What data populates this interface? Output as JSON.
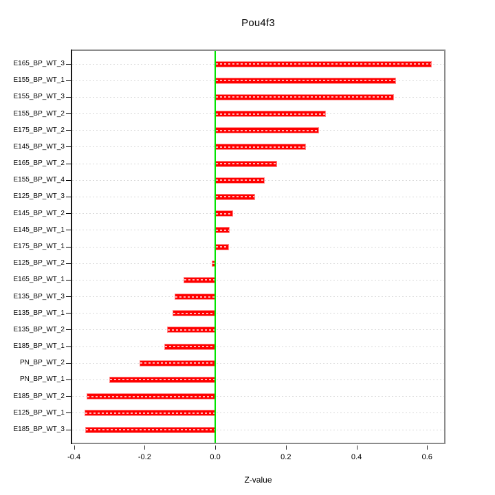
{
  "chart": {
    "title": "Pou4f3",
    "xlabel": "Z-value"
  },
  "chart_data": {
    "type": "bar",
    "orientation": "horizontal",
    "title": "Pou4f3",
    "xlabel": "Z-value",
    "ylabel": "",
    "legend": "none",
    "grid": "dotted horizontal line per category",
    "xlim": [
      -0.409,
      0.652
    ],
    "x_ticks": [
      -0.4,
      -0.2,
      0.0,
      0.2,
      0.4,
      0.6
    ],
    "x_tick_labels": [
      "-0.4",
      "-0.2",
      "0.0",
      "0.2",
      "0.4",
      "0.6"
    ],
    "categories": [
      "E165_BP_WT_3",
      "E155_BP_WT_1",
      "E155_BP_WT_3",
      "E155_BP_WT_2",
      "E175_BP_WT_2",
      "E145_BP_WT_3",
      "E165_BP_WT_2",
      "E155_BP_WT_4",
      "E125_BP_WT_3",
      "E145_BP_WT_2",
      "E145_BP_WT_1",
      "E175_BP_WT_1",
      "E125_BP_WT_2",
      "E165_BP_WT_1",
      "E135_BP_WT_3",
      "E135_BP_WT_1",
      "E135_BP_WT_2",
      "E185_BP_WT_1",
      "PN_BP_WT_2",
      "PN_BP_WT_1",
      "E185_BP_WT_2",
      "E125_BP_WT_1",
      "E185_BP_WT_3"
    ],
    "values": [
      0.613,
      0.511,
      0.506,
      0.313,
      0.293,
      0.256,
      0.176,
      0.14,
      0.112,
      0.051,
      0.041,
      0.038,
      -0.009,
      -0.09,
      -0.115,
      -0.121,
      -0.137,
      -0.145,
      -0.214,
      -0.3,
      -0.364,
      -0.371,
      -0.369
    ],
    "colors": {
      "bar": "#FF0000",
      "bar_border": "#FF8A8A",
      "bar_inner_dash": "rgba(255,255,255,0.72)",
      "zero_line": "#00E400",
      "frame": "#8C8C8C",
      "axis": "#1A1A1A",
      "gridline": "#D9D9D9",
      "text": "#000000",
      "background": "#FFFFFF"
    }
  }
}
